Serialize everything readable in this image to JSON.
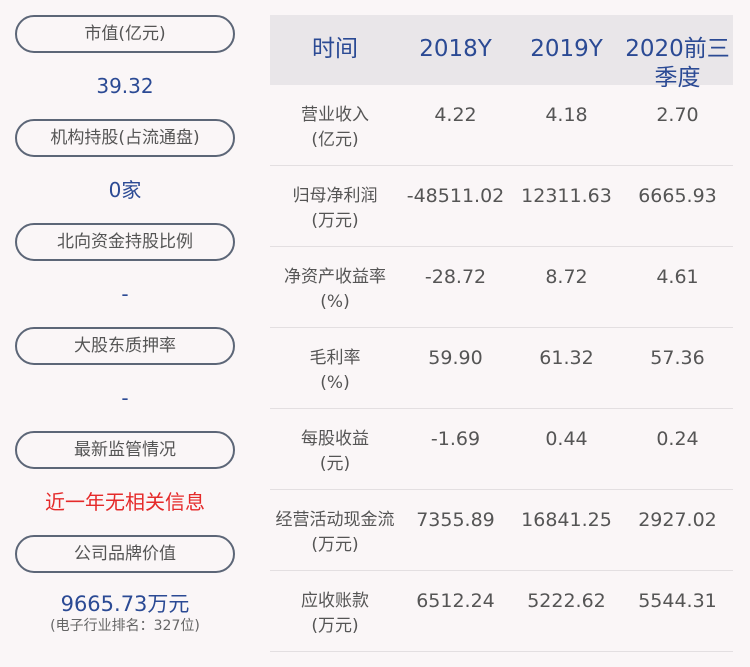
{
  "left": [
    {
      "label": "市值(亿元)",
      "value": "39.32"
    },
    {
      "label": "机构持股(占流通盘)",
      "value": "0家"
    },
    {
      "label": "北向资金持股比例",
      "value": "-"
    },
    {
      "label": "大股东质押率",
      "value": "-"
    },
    {
      "label": "最新监管情况",
      "value": "近一年无相关信息"
    },
    {
      "label": "公司品牌价值",
      "value": "9665.73万元",
      "sub": "(电子行业排名：327位)"
    }
  ],
  "table": {
    "headers": [
      "时间",
      "2018Y",
      "2019Y",
      "2020前三季度"
    ],
    "rows": [
      {
        "label": "营业收入",
        "unit": "(亿元)",
        "values": [
          "4.22",
          "4.18",
          "2.70"
        ]
      },
      {
        "label": "归母净利润",
        "unit": "(万元)",
        "values": [
          "-48511.02",
          "12311.63",
          "6665.93"
        ]
      },
      {
        "label": "净资产收益率",
        "unit": "(%)",
        "values": [
          "-28.72",
          "8.72",
          "4.61"
        ]
      },
      {
        "label": "毛利率",
        "unit": "(%)",
        "values": [
          "59.90",
          "61.32",
          "57.36"
        ]
      },
      {
        "label": "每股收益",
        "unit": "(元)",
        "values": [
          "-1.69",
          "0.44",
          "0.24"
        ]
      },
      {
        "label": "经营活动现金流",
        "unit": "(万元)",
        "values": [
          "7355.89",
          "16841.25",
          "2927.02"
        ]
      },
      {
        "label": "应收账款",
        "unit": "(万元)",
        "values": [
          "6512.24",
          "5222.62",
          "5544.31"
        ]
      }
    ]
  },
  "colors": {
    "accent": "#2b4a94",
    "alert": "#e52a2a",
    "header_bg": "#e9e6e9"
  }
}
